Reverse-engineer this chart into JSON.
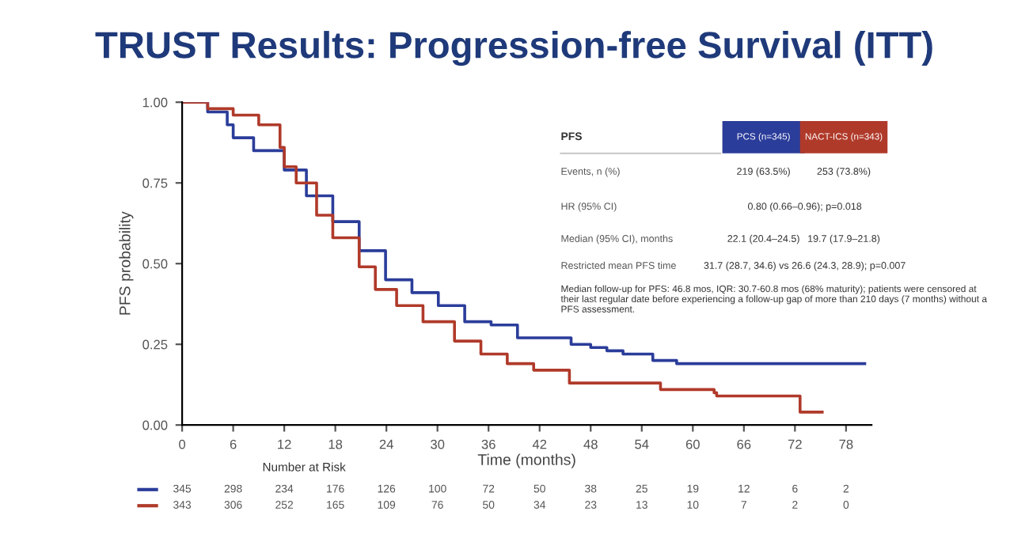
{
  "chart_data": {
    "type": "step",
    "title": "TRUST Results: Progression-free Survival (ITT)",
    "xlabel": "Time (months)",
    "ylabel": "PFS probability",
    "xlim": [
      0,
      81
    ],
    "xticks": [
      0,
      6,
      12,
      18,
      24,
      30,
      36,
      42,
      48,
      54,
      60,
      66,
      72,
      78
    ],
    "ylim": [
      0,
      1
    ],
    "yticks": [
      {
        "value": 0,
        "label": "0.00"
      },
      {
        "value": 0.25,
        "label": "0.25"
      },
      {
        "value": 0.5,
        "label": "0.50"
      },
      {
        "value": 0.75,
        "label": "0.75"
      },
      {
        "value": 1,
        "label": "1.00"
      }
    ],
    "grid": false,
    "legend": false,
    "marker": "none",
    "line_style": "solid",
    "series": [
      {
        "name": "PCS (n=345)",
        "color": "#2b3d9a",
        "x": [
          0,
          3,
          5.3,
          6,
          8.4,
          12,
          14.6,
          17.7,
          20.8,
          23.9,
          27,
          30.1,
          33.2,
          36.3,
          39.4,
          42.5,
          45.7,
          48,
          49.9,
          51.8,
          54.3,
          55.3,
          58.1,
          58.7,
          80.2
        ],
        "values": [
          1,
          0.97,
          0.93,
          0.89,
          0.85,
          0.79,
          0.71,
          0.63,
          0.54,
          0.45,
          0.41,
          0.37,
          0.32,
          0.31,
          0.27,
          0.27,
          0.25,
          0.24,
          0.23,
          0.22,
          0.22,
          0.2,
          0.19,
          0.19,
          0.19
        ]
      },
      {
        "name": "NACT-ICS (n=343)",
        "color": "#b03a2a",
        "x": [
          0,
          3,
          6,
          9,
          11.5,
          12,
          13.4,
          15.8,
          17.7,
          20.8,
          22.7,
          25.2,
          28.3,
          32,
          35.1,
          38.2,
          41.3,
          45.5,
          51.8,
          56.2,
          62.5,
          62.8,
          72.3,
          72.6,
          75.2
        ],
        "values": [
          1,
          0.98,
          0.96,
          0.93,
          0.86,
          0.8,
          0.75,
          0.65,
          0.58,
          0.49,
          0.42,
          0.37,
          0.32,
          0.26,
          0.22,
          0.19,
          0.17,
          0.13,
          0.13,
          0.11,
          0.1,
          0.09,
          0.09,
          0.04,
          0.04
        ]
      }
    ],
    "annotations": [
      "PFS",
      "Events, n (%)",
      "219 (63.5%)",
      "253 (73.8%)",
      "HR (95% CI)",
      "0.80 (0.66–0.96); p=0.018",
      "Median (95% CI), months",
      "22.1 (20.4–24.5)",
      "19.7 (17.9–21.8)",
      "Restricted mean PFS time",
      "31.7 (28.7, 34.6) vs 26.6 (24.3, 28.9); p=0.007",
      "Median follow-up for PFS: 46.8 mos, IQR: 30.7-60.8 mos (68% maturity); patients were censored at their last regular date before experiencing a follow-up gap of more than 210 days (7 months) without a PFS assessment.",
      "Number at Risk",
      "345 298 234 176 126 100 72 50 38 25 19 12 6 2",
      "343 306 252 165 109 76 50 34 23 13 10 7 2 0"
    ]
  }
}
